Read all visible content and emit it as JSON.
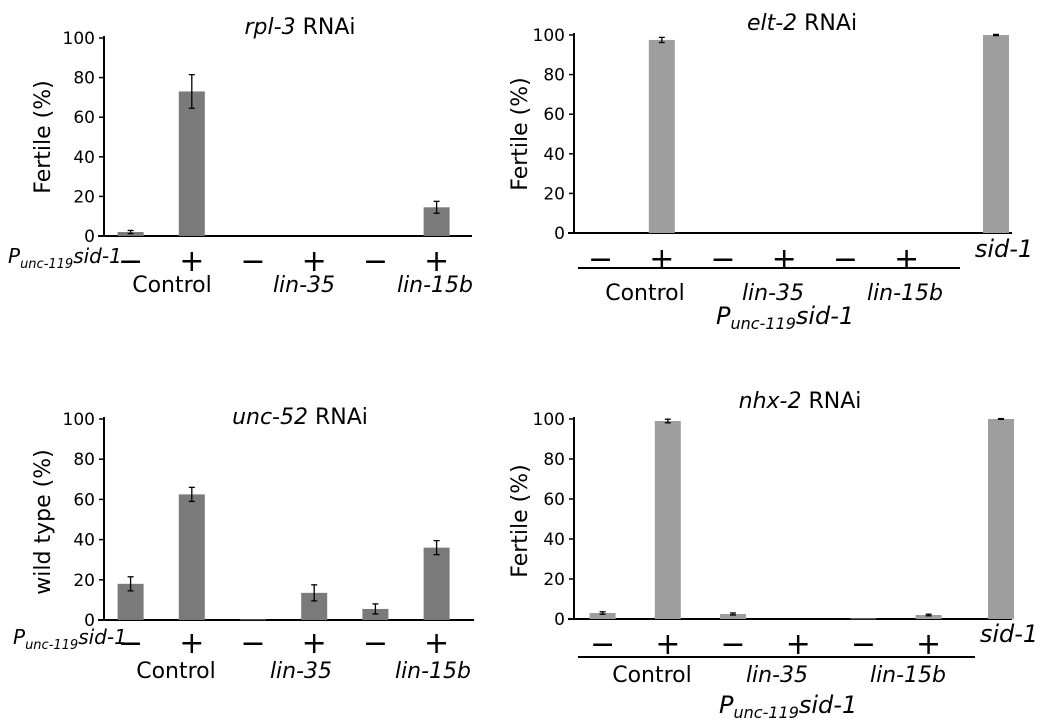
{
  "chart_data": [
    {
      "id": "rpl3",
      "type": "bar",
      "title_italic": "rpl-3",
      "title_rest": " RNAi",
      "ylabel": "Fertile (%)",
      "ylim": [
        0,
        100
      ],
      "yticks": [
        "0",
        "20",
        "40",
        "60",
        "80",
        "100"
      ],
      "series_color": "#7a7a7a",
      "row_label": {
        "p": "P",
        "sub": "unc-119",
        "rest": "sid-1"
      },
      "signs": [
        "−",
        "+",
        "−",
        "+",
        "−",
        "+"
      ],
      "groups": [
        "Control",
        "lin-35",
        "lin-15b"
      ],
      "values": [
        2,
        73,
        0,
        0,
        0,
        14.5
      ],
      "errors": [
        0.8,
        8.5,
        0,
        0,
        0,
        3
      ]
    },
    {
      "id": "elt2",
      "type": "bar",
      "title_italic": "elt-2",
      "title_rest": " RNAi",
      "ylabel": "Fertile (%)",
      "ylim": [
        0,
        100
      ],
      "yticks": [
        "0",
        "20",
        "40",
        "60",
        "80",
        "100"
      ],
      "series_color": "#9e9e9e",
      "row_label": {
        "p": "P",
        "sub": "unc-119",
        "rest": "sid-1"
      },
      "signs": [
        "−",
        "+",
        "−",
        "+",
        "−",
        "+"
      ],
      "groups": [
        "Control",
        "lin-35",
        "lin-15b"
      ],
      "extra_label": "sid-1",
      "values": [
        0,
        97.5,
        0,
        0,
        0,
        0,
        100
      ],
      "errors": [
        0,
        1.3,
        0,
        0,
        0,
        0,
        0.3
      ]
    },
    {
      "id": "unc52",
      "type": "bar",
      "title_italic": "unc-52",
      "title_rest": " RNAi",
      "ylabel": "wild type (%)",
      "ylim": [
        0,
        100
      ],
      "yticks": [
        "0",
        "20",
        "40",
        "60",
        "80",
        "100"
      ],
      "series_color": "#7a7a7a",
      "row_label": {
        "p": "P",
        "sub": "unc-119",
        "rest": "sid-1"
      },
      "signs": [
        "−",
        "+",
        "−",
        "+",
        "−",
        "+"
      ],
      "groups": [
        "Control",
        "lin-35",
        "lin-15b"
      ],
      "values": [
        18,
        62.5,
        0.3,
        13.5,
        5.5,
        36
      ],
      "errors": [
        3.5,
        3.5,
        0,
        4,
        2.5,
        3.5
      ]
    },
    {
      "id": "nhx2",
      "type": "bar",
      "title_italic": "nhx-2",
      "title_rest": " RNAi",
      "ylabel": "Fertile (%)",
      "ylim": [
        0,
        100
      ],
      "yticks": [
        "0",
        "20",
        "40",
        "60",
        "80",
        "100"
      ],
      "series_color": "#9e9e9e",
      "row_label": {
        "p": "P",
        "sub": "unc-119",
        "rest": "sid-1"
      },
      "signs": [
        "−",
        "+",
        "−",
        "+",
        "−",
        "+"
      ],
      "groups": [
        "Control",
        "lin-35",
        "lin-15b"
      ],
      "extra_label": "sid-1",
      "values": [
        3,
        99,
        2.5,
        0,
        0.3,
        2,
        100
      ],
      "errors": [
        0.6,
        0.9,
        0.5,
        0,
        0,
        0.4,
        0.2
      ]
    }
  ]
}
